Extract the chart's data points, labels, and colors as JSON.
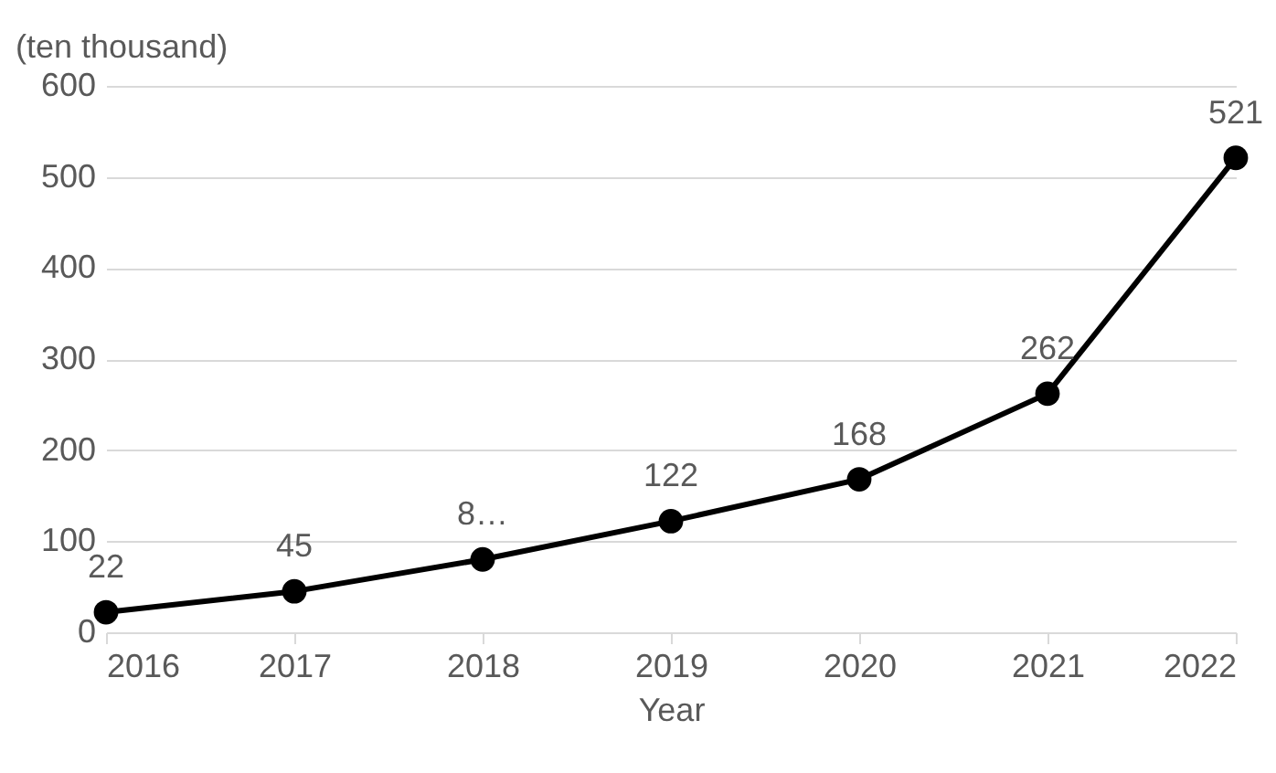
{
  "chart_data": {
    "type": "line",
    "xlabel": "Year",
    "ylabel": "(ten thousand)",
    "x": [
      2016,
      2017,
      2018,
      2019,
      2020,
      2021,
      2022
    ],
    "series": [
      {
        "color": "#000000",
        "values": [
          22,
          45,
          80,
          122,
          168,
          262,
          521
        ]
      }
    ],
    "value_labels": [
      "22",
      "45",
      "8…",
      "122",
      "168",
      "262",
      "521"
    ],
    "xlim": [
      2016,
      2022
    ],
    "xticks": [
      2016,
      2017,
      2018,
      2019,
      2020,
      2021,
      2022
    ],
    "ylim": [
      0,
      600
    ],
    "yticks": [
      0,
      100,
      200,
      300,
      400,
      500,
      600
    ],
    "grid": "y",
    "marker": "circle",
    "line_style": "solid",
    "legend": false
  }
}
